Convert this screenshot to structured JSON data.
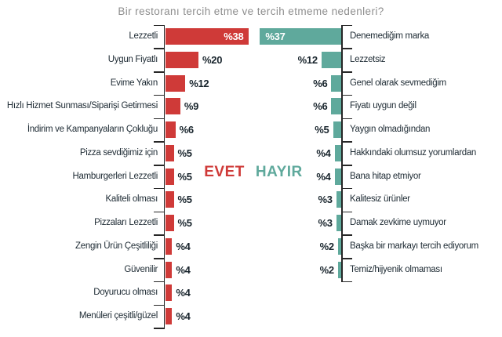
{
  "title": "Bir restoranı tercih etme ve tercih etmeme nedenleri?",
  "legend": {
    "yes": "EVET",
    "no": "HAYIR"
  },
  "value_prefix": "%",
  "colors": {
    "yes_bar": "#cf3a38",
    "no_bar": "#5fa99c",
    "label_text": "#1d2a33",
    "value_text": "#18242c",
    "title_text": "#8e8e8e",
    "axis": "#262626",
    "background": "#ffffff"
  },
  "chart_data": [
    {
      "type": "bar",
      "series_name": "EVET",
      "orientation": "horizontal-grow-right",
      "unit": "percent",
      "categories": [
        "Lezzetli",
        "Uygun Fiyatlı",
        "Evime Yakın",
        "Hızlı Hizmet Sunması/Siparişi Getirmesi",
        "İndirim ve Kampanyaların Çokluğu",
        "Pizza sevdiğimiz için",
        "Hamburgerleri Lezzetli",
        "Kaliteli olması",
        "Pizzaları Lezzetli",
        "Zengin Ürün Çeşitliliği",
        "Güvenilir",
        "Doyurucu olması",
        "Menüleri çeşitli/güzel"
      ],
      "values": [
        38,
        20,
        12,
        9,
        6,
        5,
        5,
        5,
        5,
        4,
        4,
        4,
        4
      ],
      "value_labels": [
        "%38",
        "%20",
        "%12",
        "%9",
        "%6",
        "%5",
        "%5",
        "%5",
        "%5",
        "%4",
        "%4",
        "%4",
        "%4"
      ]
    },
    {
      "type": "bar",
      "series_name": "HAYIR",
      "orientation": "horizontal-grow-left",
      "unit": "percent",
      "categories": [
        "Denemediğim marka",
        "Lezzetsiz",
        "Genel olarak sevmediğim",
        "Fiyatı uygun değil",
        "Yaygın olmadığından",
        "Hakkındaki olumsuz yorumlardan",
        "Bana hitap etmiyor",
        "Kalitesiz ürünler",
        "Damak zevkime uymuyor",
        "Başka bir markayı tercih ediyorum",
        "Temiz/hijyenik olmaması"
      ],
      "values": [
        37,
        12,
        6,
        6,
        5,
        4,
        4,
        3,
        3,
        2,
        2
      ],
      "value_labels": [
        "%37",
        "%12",
        "%6",
        "%6",
        "%5",
        "%4",
        "%4",
        "%3",
        "%3",
        "%2",
        "%2"
      ]
    }
  ]
}
